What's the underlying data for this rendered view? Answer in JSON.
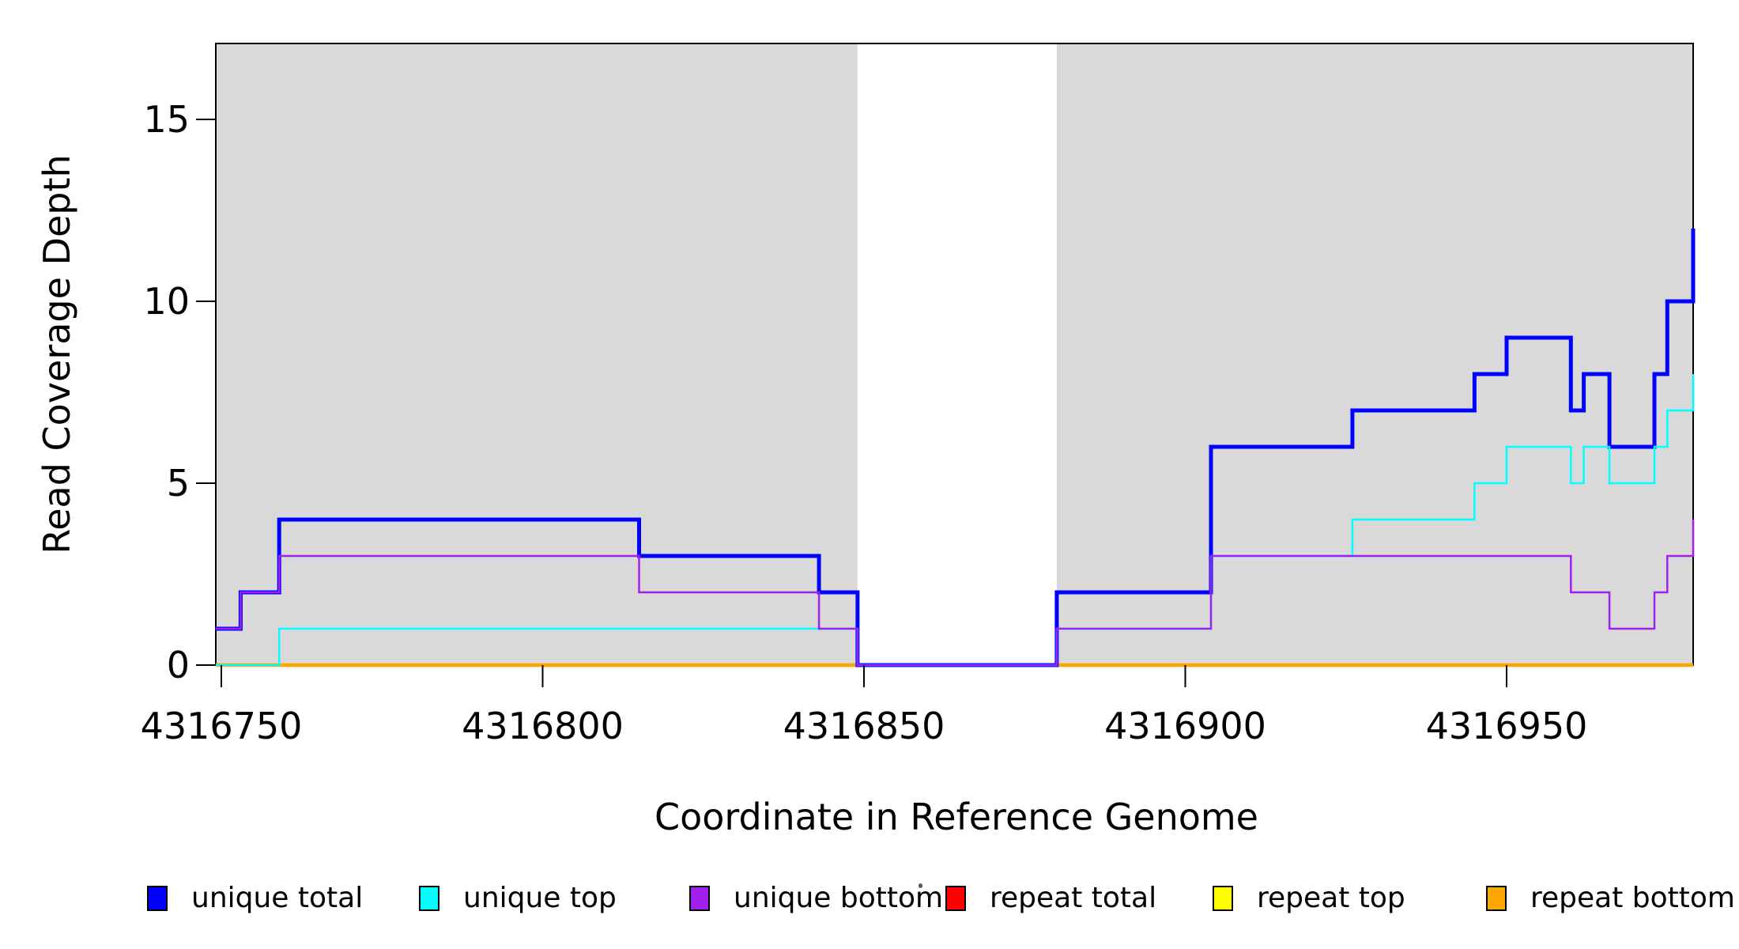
{
  "axes": {
    "x": {
      "label": "Coordinate in Reference Genome",
      "ticks": [
        4316750,
        4316800,
        4316850,
        4316900,
        4316950
      ]
    },
    "y": {
      "label": "Read Coverage Depth",
      "ticks": [
        0,
        5,
        10,
        15
      ]
    }
  },
  "legend": {
    "items": [
      {
        "label": "unique total",
        "color": "#0000FF"
      },
      {
        "label": "unique top",
        "color": "#00FFFF"
      },
      {
        "label": "unique bottom",
        "color": "#A020F0"
      },
      {
        "label": "repeat total",
        "color": "#FF0000"
      },
      {
        "label": "repeat top",
        "color": "#FFFF00"
      },
      {
        "label": "repeat bottom",
        "color": "#FFA500"
      }
    ]
  },
  "chart_data": {
    "type": "line",
    "subtype": "step",
    "title": "",
    "xlabel": "Coordinate in Reference Genome",
    "ylabel": "Read Coverage Depth",
    "xlim": [
      4316749,
      4316979
    ],
    "ylim": [
      0,
      17
    ],
    "x_ticks": [
      4316750,
      4316800,
      4316850,
      4316900,
      4316950
    ],
    "y_ticks": [
      0,
      5,
      10,
      15
    ],
    "grid": false,
    "legend_position": "bottom",
    "background_shading": {
      "color": "#D9D9D9",
      "shaded_regions": [
        [
          4316749,
          4316849
        ],
        [
          4316880,
          4316979
        ]
      ],
      "white_gap_region": [
        4316849,
        4316880
      ]
    },
    "step_edges": [
      4316749,
      4316753,
      4316759,
      4316815,
      4316843,
      4316849,
      4316880,
      4316904,
      4316926,
      4316945,
      4316950,
      4316960,
      4316962,
      4316966,
      4316973,
      4316975,
      4316979
    ],
    "series": [
      {
        "name": "repeat total",
        "color": "#FF0000",
        "linewidth": 4,
        "values": [
          0,
          0,
          0,
          0,
          0,
          0,
          0,
          0,
          0,
          0,
          0,
          0,
          0,
          0,
          0,
          0
        ],
        "right_edge_value": 0
      },
      {
        "name": "repeat top",
        "color": "#FFFF00",
        "linewidth": 4,
        "values": [
          0,
          0,
          0,
          0,
          0,
          0,
          0,
          0,
          0,
          0,
          0,
          0,
          0,
          0,
          0,
          0
        ],
        "right_edge_value": 0
      },
      {
        "name": "repeat bottom",
        "color": "#FFA500",
        "linewidth": 4.5,
        "values": [
          0,
          0,
          0,
          0,
          0,
          0,
          0,
          0,
          0,
          0,
          0,
          0,
          0,
          0,
          0,
          0
        ],
        "right_edge_value": 0
      },
      {
        "name": "unique total",
        "color": "#0000FF",
        "linewidth": 5,
        "values": [
          1,
          2,
          4,
          3,
          2,
          0,
          2,
          6,
          7,
          8,
          9,
          7,
          8,
          6,
          8,
          10
        ],
        "right_edge_value": 12
      },
      {
        "name": "unique top",
        "color": "#00FFFF",
        "linewidth": 2.5,
        "values": [
          0,
          0,
          1,
          1,
          1,
          0,
          1,
          3,
          4,
          5,
          6,
          5,
          6,
          5,
          6,
          7
        ],
        "right_edge_value": 8
      },
      {
        "name": "unique bottom",
        "color": "#A020F0",
        "linewidth": 2.5,
        "values": [
          1,
          2,
          3,
          2,
          1,
          0,
          1,
          3,
          3,
          3,
          3,
          2,
          2,
          1,
          2,
          3
        ],
        "right_edge_value": 4
      }
    ]
  }
}
